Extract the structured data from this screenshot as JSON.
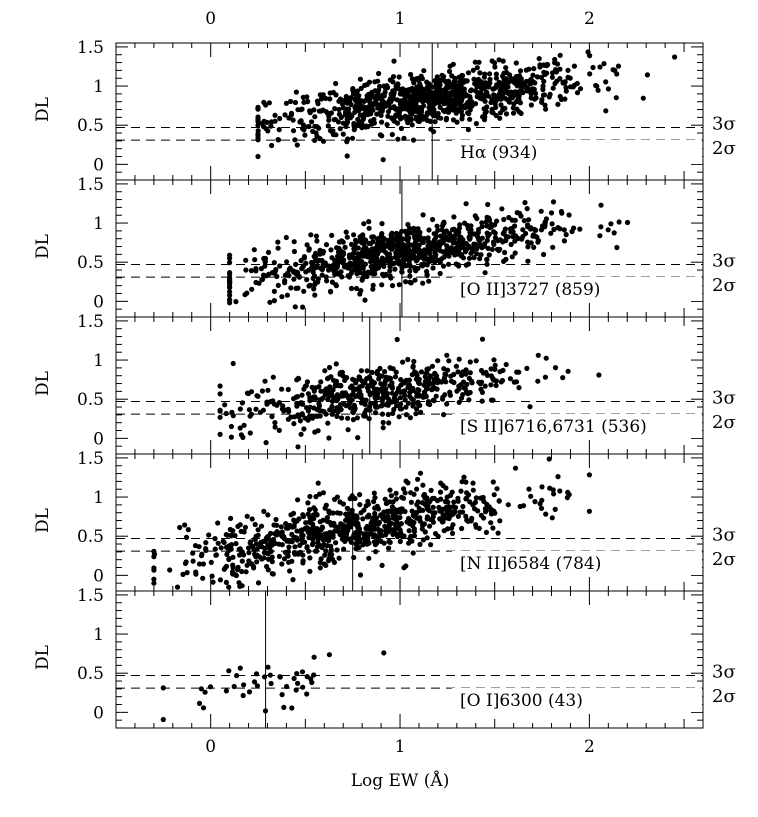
{
  "chart_data": {
    "type": "scatter",
    "xlabel": "Log EW  (Å)",
    "xlim": [
      -0.5,
      2.6
    ],
    "x_ticks": [
      "0",
      "1",
      "2"
    ],
    "x_tick_values": [
      0,
      1,
      2
    ],
    "ylabel": "DL",
    "ylim": [
      -0.2,
      1.55
    ],
    "y_ticks": [
      "0",
      "0.5",
      "1",
      "1.5"
    ],
    "y_tick_values": [
      0,
      0.5,
      1,
      1.5
    ],
    "sigma_lines": [
      {
        "label": "3σ",
        "y": 0.47
      },
      {
        "label": "2σ",
        "y": 0.31
      }
    ],
    "panels": [
      {
        "name": "Ha",
        "label": "Hα (934)",
        "count": 934,
        "median_log_ew": 1.17,
        "xrange": [
          0.25,
          2.0
        ],
        "slope": 0.32,
        "center": 1.15,
        "center_y": 0.82,
        "spread": 0.17
      },
      {
        "name": "OII",
        "label": "[O II]3727 (859)",
        "count": 859,
        "median_log_ew": 1.01,
        "xrange": [
          0.1,
          1.8
        ],
        "slope": 0.38,
        "center": 1.0,
        "center_y": 0.62,
        "spread": 0.17
      },
      {
        "name": "SII",
        "label": "[S II]6716,6731 (536)",
        "count": 536,
        "median_log_ew": 0.84,
        "xrange": [
          0.05,
          1.6
        ],
        "slope": 0.35,
        "center": 0.85,
        "center_y": 0.57,
        "spread": 0.18
      },
      {
        "name": "NII",
        "label": "[N II]6584 (784)",
        "count": 784,
        "median_log_ew": 0.75,
        "xrange": [
          -0.3,
          1.55
        ],
        "slope": 0.45,
        "center": 0.75,
        "center_y": 0.6,
        "spread": 0.2
      },
      {
        "name": "OI",
        "label": "[O I]6300 (43)",
        "count": 43,
        "median_log_ew": 0.29,
        "xrange": [
          -0.25,
          0.85
        ],
        "slope": 0.3,
        "center": 0.3,
        "center_y": 0.37,
        "spread": 0.15
      }
    ]
  }
}
